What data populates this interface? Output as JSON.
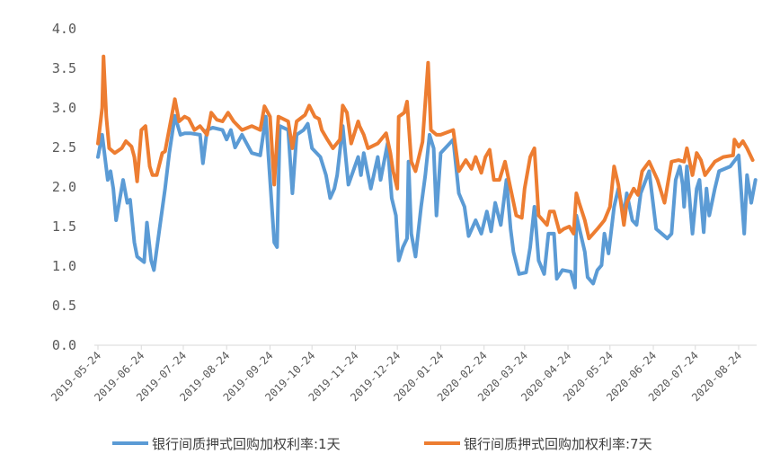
{
  "chart_data": {
    "type": "line",
    "title": "",
    "xlabel": "",
    "ylabel": "",
    "ylim": [
      0,
      4.0
    ],
    "yticks": [
      "0.0",
      "0.5",
      "1.0",
      "1.5",
      "2.0",
      "2.5",
      "3.0",
      "3.5",
      "4.0"
    ],
    "xticks": [
      "2019-05-24",
      "2019-06-24",
      "2019-07-24",
      "2019-08-24",
      "2019-09-24",
      "2019-10-24",
      "2019-11-24",
      "2019-12-24",
      "2020-01-24",
      "2020-02-24",
      "2020-03-24",
      "2020-04-24",
      "2020-05-24",
      "2020-06-24",
      "2020-07-24",
      "2020-08-24"
    ],
    "grid": false,
    "legend_position": "bottom",
    "series": [
      {
        "name": "银行间质押式回购加权利率:1天",
        "color": "#5b9bd5",
        "x": [
          "2019-05-24",
          "2019-05-27",
          "2019-05-31",
          "2019-06-02",
          "2019-06-04",
          "2019-06-06",
          "2019-06-11",
          "2019-06-14",
          "2019-06-16",
          "2019-06-19",
          "2019-06-21",
          "2019-06-26",
          "2019-06-28",
          "2019-07-01",
          "2019-07-03",
          "2019-07-07",
          "2019-07-11",
          "2019-07-14",
          "2019-07-18",
          "2019-07-22",
          "2019-07-25",
          "2019-07-29",
          "2019-08-05",
          "2019-08-07",
          "2019-08-10",
          "2019-08-14",
          "2019-08-21",
          "2019-08-24",
          "2019-08-27",
          "2019-08-30",
          "2019-09-04",
          "2019-09-11",
          "2019-09-17",
          "2019-09-21",
          "2019-09-27",
          "2019-09-29",
          "2019-10-01",
          "2019-10-07",
          "2019-10-10",
          "2019-10-13",
          "2019-10-18",
          "2019-10-21",
          "2019-10-24",
          "2019-10-30",
          "2019-11-03",
          "2019-11-06",
          "2019-11-09",
          "2019-11-11",
          "2019-11-15",
          "2019-11-19",
          "2019-11-26",
          "2019-11-28",
          "2019-11-30",
          "2019-12-05",
          "2019-12-10",
          "2019-12-12",
          "2019-12-17",
          "2019-12-20",
          "2019-12-23",
          "2019-12-25",
          "2019-12-28",
          "2019-12-31",
          "2020-01-01",
          "2020-01-03",
          "2020-01-06",
          "2020-01-10",
          "2020-01-13",
          "2020-01-16",
          "2020-01-19",
          "2020-01-21",
          "2020-01-24",
          "2020-02-02",
          "2020-02-06",
          "2020-02-10",
          "2020-02-13",
          "2020-02-18",
          "2020-02-22",
          "2020-02-26",
          "2020-02-29",
          "2020-03-03",
          "2020-03-07",
          "2020-03-11",
          "2020-03-14",
          "2020-03-16",
          "2020-03-20",
          "2020-03-25",
          "2020-03-28",
          "2020-03-31",
          "2020-04-03",
          "2020-04-07",
          "2020-04-10",
          "2020-04-14",
          "2020-04-16",
          "2020-04-20",
          "2020-04-26",
          "2020-04-29",
          "2020-04-30",
          "2020-05-06",
          "2020-05-08",
          "2020-05-12",
          "2020-05-15",
          "2020-05-18",
          "2020-05-20",
          "2020-05-23",
          "2020-05-27",
          "2020-05-30",
          "2020-06-03",
          "2020-06-05",
          "2020-06-09",
          "2020-06-12",
          "2020-06-15",
          "2020-06-21",
          "2020-06-26",
          "2020-07-04",
          "2020-07-07",
          "2020-07-10",
          "2020-07-13",
          "2020-07-15",
          "2020-07-16",
          "2020-07-18",
          "2020-07-22",
          "2020-07-25",
          "2020-07-27",
          "2020-07-30",
          "2020-08-01",
          "2020-08-03",
          "2020-08-07",
          "2020-08-10",
          "2020-08-18",
          "2020-08-24",
          "2020-08-28",
          "2020-08-30",
          "2020-09-02",
          "2020-09-05"
        ],
        "y": [
          2.38,
          2.66,
          2.09,
          2.2,
          1.98,
          1.58,
          2.09,
          1.8,
          1.84,
          1.3,
          1.12,
          1.05,
          1.55,
          1.07,
          0.95,
          1.47,
          1.98,
          2.43,
          2.9,
          2.66,
          2.68,
          2.68,
          2.66,
          2.3,
          2.72,
          2.75,
          2.72,
          2.6,
          2.72,
          2.5,
          2.66,
          2.43,
          2.4,
          2.89,
          1.3,
          1.24,
          2.77,
          2.72,
          1.92,
          2.66,
          2.72,
          2.8,
          2.49,
          2.38,
          2.15,
          1.86,
          1.98,
          2.15,
          2.77,
          2.03,
          2.38,
          2.15,
          2.43,
          1.98,
          2.38,
          2.09,
          2.55,
          1.86,
          1.64,
          1.07,
          1.24,
          1.35,
          2.32,
          1.41,
          1.12,
          1.75,
          2.15,
          2.66,
          2.49,
          1.64,
          2.43,
          2.6,
          1.92,
          1.75,
          1.38,
          1.58,
          1.41,
          1.69,
          1.44,
          1.8,
          1.52,
          2.09,
          1.47,
          1.18,
          0.9,
          0.92,
          1.24,
          1.75,
          1.07,
          0.9,
          1.41,
          1.41,
          0.84,
          0.95,
          0.93,
          0.73,
          1.64,
          1.18,
          0.86,
          0.78,
          0.95,
          1.01,
          1.41,
          1.16,
          1.75,
          1.98,
          1.64,
          1.92,
          1.58,
          1.52,
          1.92,
          2.2,
          1.47,
          1.35,
          1.41,
          2.09,
          2.26,
          2.03,
          1.75,
          2.26,
          1.41,
          1.98,
          2.09,
          1.43,
          1.98,
          1.64,
          1.98,
          2.2,
          2.26,
          2.4,
          1.41,
          2.15,
          1.8,
          2.09
        ]
      },
      {
        "name": "银行间质押式回购加权利率:7天",
        "color": "#ed7d31",
        "x": [
          "2019-05-24",
          "2019-05-27",
          "2019-05-28",
          "2019-05-30",
          "2019-06-01",
          "2019-06-05",
          "2019-06-10",
          "2019-06-13",
          "2019-06-17",
          "2019-06-19",
          "2019-06-21",
          "2019-06-24",
          "2019-06-27",
          "2019-06-30",
          "2019-07-02",
          "2019-07-05",
          "2019-07-09",
          "2019-07-11",
          "2019-07-18",
          "2019-07-21",
          "2019-07-25",
          "2019-07-28",
          "2019-08-01",
          "2019-08-05",
          "2019-08-10",
          "2019-08-13",
          "2019-08-17",
          "2019-08-21",
          "2019-08-25",
          "2019-08-29",
          "2019-09-04",
          "2019-09-11",
          "2019-09-17",
          "2019-09-20",
          "2019-09-24",
          "2019-09-27",
          "2019-09-30",
          "2019-10-07",
          "2019-10-10",
          "2019-10-13",
          "2019-10-19",
          "2019-10-22",
          "2019-10-26",
          "2019-10-29",
          "2019-10-31",
          "2019-11-04",
          "2019-11-08",
          "2019-11-13",
          "2019-11-14",
          "2019-11-15",
          "2019-11-18",
          "2019-11-21",
          "2019-11-26",
          "2019-11-27",
          "2019-11-30",
          "2019-12-03",
          "2019-12-10",
          "2019-12-16",
          "2019-12-19",
          "2019-12-21",
          "2019-12-24",
          "2019-12-25",
          "2019-12-29",
          "2019-12-31",
          "2020-01-03",
          "2020-01-06",
          "2020-01-11",
          "2020-01-15",
          "2020-01-17",
          "2020-01-21",
          "2020-01-24",
          "2020-02-02",
          "2020-02-06",
          "2020-02-11",
          "2020-02-15",
          "2020-02-18",
          "2020-02-22",
          "2020-02-25",
          "2020-02-28",
          "2020-03-02",
          "2020-03-06",
          "2020-03-10",
          "2020-03-14",
          "2020-03-18",
          "2020-03-22",
          "2020-03-24",
          "2020-03-28",
          "2020-03-31",
          "2020-04-03",
          "2020-04-09",
          "2020-04-11",
          "2020-04-14",
          "2020-04-18",
          "2020-04-21",
          "2020-04-25",
          "2020-04-28",
          "2020-04-30",
          "2020-05-02",
          "2020-05-06",
          "2020-05-09",
          "2020-05-12",
          "2020-05-15",
          "2020-05-20",
          "2020-05-24",
          "2020-05-27",
          "2020-05-30",
          "2020-06-03",
          "2020-06-05",
          "2020-06-10",
          "2020-06-13",
          "2020-06-16",
          "2020-06-21",
          "2020-06-27",
          "2020-07-02",
          "2020-07-07",
          "2020-07-12",
          "2020-07-16",
          "2020-07-18",
          "2020-07-22",
          "2020-07-25",
          "2020-07-28",
          "2020-07-31",
          "2020-08-07",
          "2020-08-13",
          "2020-08-20",
          "2020-08-21",
          "2020-08-24",
          "2020-08-27",
          "2020-08-30",
          "2020-09-03"
        ],
        "y": [
          2.55,
          3.0,
          3.65,
          2.89,
          2.49,
          2.43,
          2.49,
          2.58,
          2.51,
          2.38,
          2.07,
          2.72,
          2.77,
          2.26,
          2.15,
          2.15,
          2.43,
          2.45,
          3.11,
          2.83,
          2.89,
          2.86,
          2.72,
          2.77,
          2.66,
          2.94,
          2.85,
          2.83,
          2.94,
          2.83,
          2.72,
          2.77,
          2.72,
          3.02,
          2.89,
          2.03,
          2.89,
          2.83,
          2.49,
          2.83,
          2.91,
          3.03,
          2.89,
          2.86,
          2.72,
          2.6,
          2.49,
          2.6,
          2.83,
          3.03,
          2.94,
          2.55,
          2.83,
          2.77,
          2.66,
          2.49,
          2.55,
          2.68,
          2.43,
          2.2,
          1.98,
          2.89,
          2.94,
          3.08,
          2.32,
          2.2,
          2.57,
          3.57,
          2.72,
          2.66,
          2.66,
          2.72,
          2.2,
          2.34,
          2.23,
          2.38,
          2.18,
          2.38,
          2.47,
          2.09,
          2.09,
          2.32,
          1.98,
          1.64,
          1.61,
          1.98,
          2.38,
          2.49,
          1.64,
          1.52,
          1.69,
          1.69,
          1.43,
          1.47,
          1.5,
          1.41,
          1.92,
          1.8,
          1.58,
          1.35,
          1.41,
          1.47,
          1.58,
          1.75,
          2.26,
          2.03,
          1.52,
          1.8,
          1.98,
          1.9,
          2.2,
          2.32,
          2.09,
          1.8,
          2.32,
          2.34,
          2.32,
          2.49,
          2.15,
          2.43,
          2.34,
          2.15,
          2.32,
          2.38,
          2.4,
          2.6,
          2.51,
          2.58,
          2.49,
          2.34
        ]
      }
    ]
  }
}
